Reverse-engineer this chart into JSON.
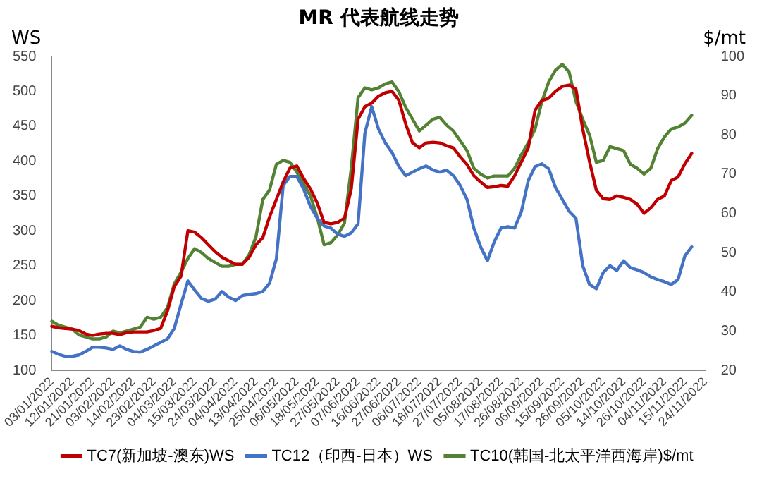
{
  "chart_data": {
    "type": "line",
    "title": "MR 代表航线走势",
    "ylabel": "WS",
    "y2label": "$/mt",
    "categories": [
      "03/01/2022",
      null,
      null,
      "12/01/2022",
      null,
      null,
      "21/01/2022",
      null,
      null,
      "03/02/2022",
      null,
      null,
      "14/02/2022",
      null,
      null,
      "23/02/2022",
      null,
      null,
      "04/03/2022",
      null,
      null,
      "15/03/2022",
      null,
      null,
      "24/03/2022",
      null,
      null,
      "04/04/2022",
      null,
      null,
      "13/04/2022",
      null,
      null,
      "25/04/2022",
      null,
      null,
      "06/05/2022",
      null,
      null,
      "18/05/2022",
      null,
      null,
      "27/05/2022",
      null,
      null,
      "07/06/2022",
      null,
      null,
      "16/06/2022",
      null,
      null,
      "27/06/2022",
      null,
      null,
      "06/07/2022",
      null,
      null,
      "18/07/2022",
      null,
      null,
      "27/07/2022",
      null,
      null,
      "05/08/2022",
      null,
      null,
      "17/08/2022",
      null,
      null,
      "26/08/2022",
      null,
      null,
      "06/09/2022",
      null,
      null,
      "15/09/2022",
      null,
      null,
      "26/09/2022",
      null,
      null,
      "05/10/2022",
      null,
      null,
      "14/10/2022",
      null,
      null,
      "26/10/2022",
      null,
      null,
      "04/11/2022",
      null,
      null,
      "15/11/2022",
      null,
      null,
      "24/11/2022"
    ],
    "series": [
      {
        "name": "TC7(新加坡-澳东)WS",
        "color": "#c00000",
        "values": [
          163,
          161,
          160,
          159,
          157,
          152,
          150,
          152,
          153,
          153,
          151,
          154,
          155,
          155,
          155,
          157,
          160,
          185,
          220,
          235,
          300,
          298,
          290,
          280,
          270,
          262,
          257,
          252,
          252,
          262,
          280,
          290,
          320,
          345,
          370,
          390,
          393,
          375,
          360,
          340,
          312,
          310,
          312,
          318,
          360,
          460,
          478,
          483,
          493,
          498,
          500,
          487,
          453,
          426,
          419,
          426,
          427,
          426,
          422,
          419,
          406,
          395,
          379,
          370,
          362,
          363,
          365,
          364,
          379,
          399,
          419,
          473,
          487,
          490,
          500,
          507,
          509,
          503,
          446,
          399,
          358,
          346,
          345,
          350,
          348,
          345,
          338,
          325,
          333,
          345,
          350,
          372,
          377,
          396,
          411,
          null,
          null
        ]
      },
      {
        "name": "TC12（印西-日本）WS",
        "color": "#4472c4",
        "values": [
          127,
          123,
          120,
          120,
          122,
          127,
          133,
          133,
          132,
          130,
          135,
          130,
          127,
          126,
          130,
          135,
          140,
          145,
          160,
          195,
          228,
          215,
          203,
          199,
          202,
          213,
          205,
          200,
          207,
          209,
          210,
          213,
          225,
          260,
          365,
          378,
          378,
          360,
          335,
          318,
          307,
          304,
          295,
          292,
          297,
          310,
          440,
          478,
          446,
          426,
          412,
          392,
          379,
          384,
          389,
          393,
          387,
          384,
          387,
          379,
          365,
          345,
          304,
          277,
          257,
          284,
          304,
          306,
          304,
          328,
          372,
          392,
          396,
          389,
          362,
          345,
          328,
          318,
          250,
          223,
          217,
          240,
          250,
          243,
          257,
          247,
          244,
          240,
          234,
          230,
          227,
          223,
          230,
          264,
          277,
          null,
          null
        ]
      },
      {
        "name": "TC10(韩国-北太平洋西海岸)$/mt",
        "color": "#548235",
        "axis": "y2",
        "values": [
          32.5,
          31.5,
          31,
          30.5,
          29,
          28.5,
          28,
          28,
          28.5,
          30,
          29.5,
          30,
          30.5,
          31,
          33.5,
          33,
          33.5,
          36,
          42,
          45,
          48.5,
          51,
          50,
          48.5,
          47.5,
          46.5,
          46.5,
          47,
          47,
          49.5,
          54,
          63.5,
          66,
          72.5,
          73.5,
          73,
          70.5,
          67.5,
          64.5,
          59,
          52,
          52.5,
          54.5,
          57.5,
          71.5,
          89.5,
          92,
          91.5,
          92,
          93,
          93.5,
          91,
          87,
          84,
          81,
          82.5,
          84,
          84.5,
          82.5,
          81,
          78.5,
          76,
          71.5,
          70,
          69,
          69.5,
          69.5,
          69.5,
          71.5,
          75,
          78,
          81.5,
          88.5,
          93.5,
          96.5,
          98,
          96,
          88.5,
          84,
          80,
          73,
          73.5,
          77,
          76.5,
          76,
          72.5,
          71.5,
          70,
          71.5,
          76.5,
          79.5,
          81.5,
          82,
          83,
          85,
          null,
          null
        ]
      }
    ],
    "ylim": [
      100,
      550
    ],
    "yticks": [
      100,
      150,
      200,
      250,
      300,
      350,
      400,
      450,
      500,
      550
    ],
    "y2lim": [
      20,
      100
    ],
    "y2ticks": [
      20,
      30,
      40,
      50,
      60,
      70,
      80,
      90,
      100
    ],
    "grid": false,
    "legend": "bottom",
    "marker": "none",
    "line_style": "solid"
  }
}
